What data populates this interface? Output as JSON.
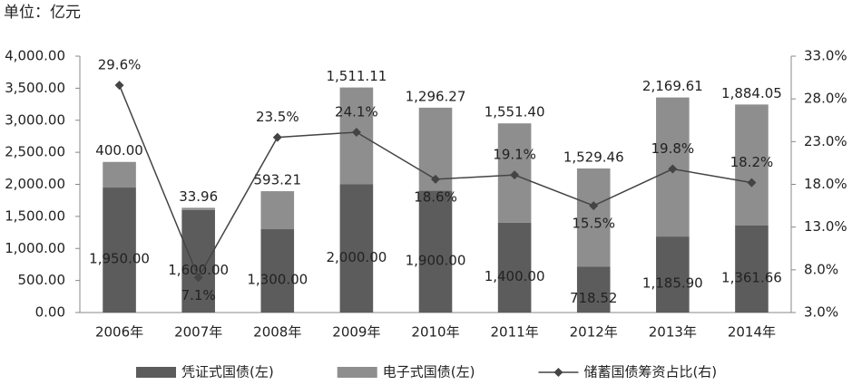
{
  "chart_data": {
    "type": "bar-line",
    "subtitle": "单位：亿元",
    "categories": [
      "2006年",
      "2007年",
      "2008年",
      "2009年",
      "2010年",
      "2011年",
      "2012年",
      "2013年",
      "2014年"
    ],
    "series": [
      {
        "name": "凭证式国债(左)",
        "type": "bar",
        "color": "#5c5c5c",
        "values": [
          1950,
          1600,
          1300,
          2000,
          1900,
          1400,
          718.52,
          1185.9,
          1361.66
        ],
        "value_labels": [
          "1,950.00",
          "1,600.00",
          "1,300.00",
          "2,000.00",
          "1,900.00",
          "1,400.00",
          "718.52",
          "1,185.90",
          "1,361.66"
        ]
      },
      {
        "name": "电子式国债(左)",
        "type": "bar",
        "color": "#8e8e8e",
        "values": [
          400,
          33.96,
          593.21,
          1511.11,
          1296.27,
          1551.4,
          1529.46,
          2169.61,
          1884.05
        ],
        "value_labels": [
          "400.00",
          "33.96",
          "593.21",
          "1,511.11",
          "1,296.27",
          "1,551.40",
          "1,529.46",
          "2,169.61",
          "1,884.05"
        ]
      },
      {
        "name": "储蓄国债筹资占比(右)",
        "type": "line",
        "axis": "y2",
        "color": "#444444",
        "values": [
          29.6,
          7.1,
          23.5,
          24.1,
          18.6,
          19.1,
          15.5,
          19.8,
          18.2
        ],
        "value_labels": [
          "29.6%",
          "7.1%",
          "23.5%",
          "24.1%",
          "18.6%",
          "19.1%",
          "15.5%",
          "19.8%",
          "18.2%"
        ]
      }
    ],
    "ylim": [
      0,
      4000
    ],
    "yticks": [
      {
        "value": 0,
        "label": "0.00"
      },
      {
        "value": 500,
        "label": "500.00"
      },
      {
        "value": 1000,
        "label": "1,000.00"
      },
      {
        "value": 1500,
        "label": "1,500.00"
      },
      {
        "value": 2000,
        "label": "2,000.00"
      },
      {
        "value": 2500,
        "label": "2,500.00"
      },
      {
        "value": 3000,
        "label": "3,000.00"
      },
      {
        "value": 3500,
        "label": "3,500.00"
      },
      {
        "value": 4000,
        "label": "4,000.00"
      }
    ],
    "y2lim": [
      3,
      33
    ],
    "y2ticks": [
      {
        "value": 3,
        "label": "3.0%"
      },
      {
        "value": 8,
        "label": "8.0%"
      },
      {
        "value": 13,
        "label": "13.0%"
      },
      {
        "value": 18,
        "label": "18.0%"
      },
      {
        "value": 23,
        "label": "23.0%"
      },
      {
        "value": 28,
        "label": "28.0%"
      },
      {
        "value": 33,
        "label": "33.0%"
      }
    ],
    "legend": "bottom"
  }
}
